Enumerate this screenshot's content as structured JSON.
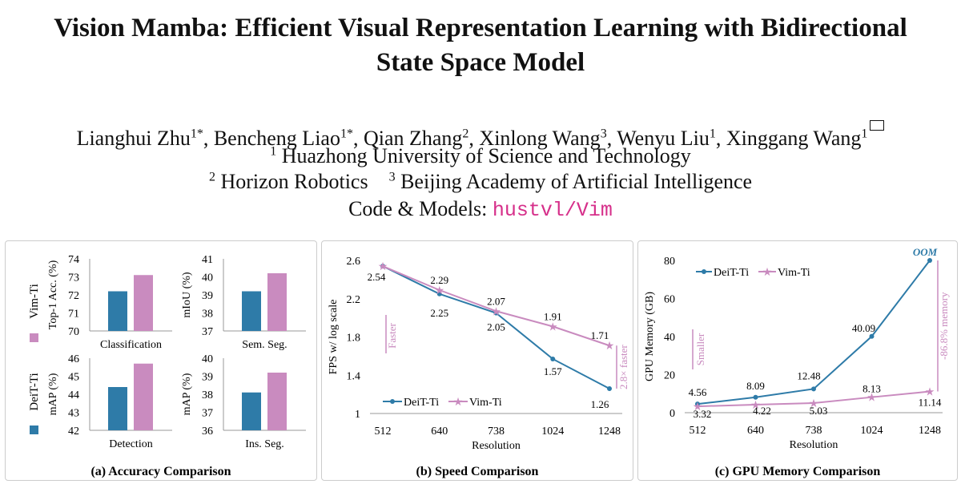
{
  "paper": {
    "title_line1": "Vision Mamba: Efficient Visual Representation Learning with Bidirectional",
    "title_line2": "State Space Model",
    "authors": [
      {
        "name": "Lianghui Zhu",
        "sup": "1*",
        "sep": ", "
      },
      {
        "name": "Bencheng Liao",
        "sup": "1*",
        "sep": ", "
      },
      {
        "name": "Qian Zhang",
        "sup": "2",
        "sep": ", "
      },
      {
        "name": "Xinlong Wang",
        "sup": "3",
        "sep": ", "
      },
      {
        "name": "Wenyu Liu",
        "sup": "1",
        "sep": ", "
      },
      {
        "name": "Xinggang Wang",
        "sup": "1",
        "sep": ""
      }
    ],
    "aff1_num": "1",
    "aff1": "Huazhong University of Science and Technology",
    "aff2_num": "2",
    "aff2": "Horizon Robotics",
    "aff3_num": "3",
    "aff3": "Beijing Academy of Artificial Intelligence",
    "code_label": "Code & Models: ",
    "code_repo": "hustvl/Vim"
  },
  "colors": {
    "deit": "#2e7ba8",
    "vim": "#c98bbf",
    "repo": "#d62f8a"
  },
  "chart_data": [
    {
      "type": "bar",
      "panel_caption": "(a) Accuracy Comparison",
      "legend": [
        "Vim-Ti",
        "DeiT-Ti"
      ],
      "subplots": [
        {
          "category": "Classification",
          "ylabel": "Top-1 Acc. (%)",
          "ylim": [
            70,
            74
          ],
          "ticks": [
            "70",
            "71",
            "72",
            "73",
            "74"
          ],
          "series": [
            {
              "name": "DeiT-Ti",
              "values": [
                72.2
              ]
            },
            {
              "name": "Vim-Ti",
              "values": [
                73.1
              ]
            }
          ]
        },
        {
          "category": "Sem. Seg.",
          "ylabel": "mIoU (%)",
          "ylim": [
            37,
            41
          ],
          "ticks": [
            "37",
            "38",
            "39",
            "40",
            "41"
          ],
          "series": [
            {
              "name": "DeiT-Ti",
              "values": [
                39.2
              ]
            },
            {
              "name": "Vim-Ti",
              "values": [
                40.2
              ]
            }
          ]
        },
        {
          "category": "Detection",
          "ylabel": "mAP (%)",
          "ylim": [
            42,
            46
          ],
          "ticks": [
            "42",
            "43",
            "44",
            "45",
            "46"
          ],
          "series": [
            {
              "name": "DeiT-Ti",
              "values": [
                44.4
              ]
            },
            {
              "name": "Vim-Ti",
              "values": [
                45.7
              ]
            }
          ]
        },
        {
          "category": "Ins. Seg.",
          "ylabel": "mAP (%)",
          "ylim": [
            36,
            40
          ],
          "ticks": [
            "36",
            "37",
            "38",
            "39",
            "40"
          ],
          "series": [
            {
              "name": "DeiT-Ti",
              "values": [
                38.1
              ]
            },
            {
              "name": "Vim-Ti",
              "values": [
                39.2
              ]
            }
          ]
        }
      ]
    },
    {
      "type": "line",
      "panel_caption": "(b) Speed Comparison",
      "xlabel": "Resolution",
      "ylabel": "FPS w/ log scale",
      "categories": [
        "512",
        "640",
        "738",
        "1024",
        "1248"
      ],
      "ylim": [
        1,
        2.6
      ],
      "yticks": [
        "1",
        "1.4",
        "1.8",
        "2.2",
        "2.6"
      ],
      "series": [
        {
          "name": "DeiT-Ti",
          "values": [
            2.54,
            2.25,
            2.05,
            1.57,
            1.26
          ],
          "labels": [
            "2.54",
            "2.25",
            "2.05",
            "1.57",
            "1.26"
          ]
        },
        {
          "name": "Vim-Ti",
          "values": [
            2.54,
            2.29,
            2.07,
            1.91,
            1.71
          ],
          "labels": [
            "",
            "2.29",
            "2.07",
            "1.91",
            "1.71"
          ]
        }
      ],
      "annotations": {
        "faster": "Faster",
        "gap": "2.8× faster"
      }
    },
    {
      "type": "line",
      "panel_caption": "(c) GPU Memory Comparison",
      "xlabel": "Resolution",
      "ylabel": "GPU Memory (GB)",
      "categories": [
        "512",
        "640",
        "738",
        "1024",
        "1248"
      ],
      "ylim": [
        0,
        80
      ],
      "yticks": [
        "0",
        "20",
        "40",
        "60",
        "80"
      ],
      "series": [
        {
          "name": "DeiT-Ti",
          "values": [
            4.56,
            8.09,
            12.48,
            40.09,
            80
          ],
          "labels": [
            "4.56",
            "8.09",
            "12.48",
            "40.09",
            ""
          ]
        },
        {
          "name": "Vim-Ti",
          "values": [
            3.32,
            4.22,
            5.03,
            8.13,
            11.14
          ],
          "labels": [
            "3.32",
            "4.22",
            "5.03",
            "8.13",
            "11.14"
          ]
        }
      ],
      "annotations": {
        "oom": "OOM",
        "smaller": "Smaller",
        "gap": "-86.8% memory"
      }
    }
  ]
}
